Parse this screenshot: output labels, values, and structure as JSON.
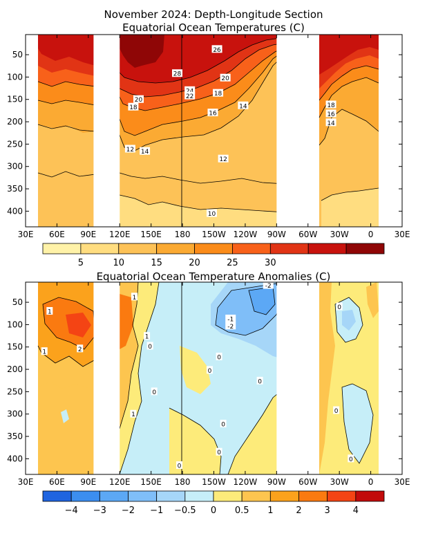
{
  "chart_data": [
    {
      "type": "heatmap",
      "title": "November 2024: Depth-Longitude Section",
      "subtitle": "Equatorial Ocean Temperatures (C)",
      "xlim": [
        30,
        390
      ],
      "ylim": [
        435,
        5
      ],
      "x_ticks": [
        {
          "v": 30,
          "label": "30E"
        },
        {
          "v": 60,
          "label": "60E"
        },
        {
          "v": 90,
          "label": "90E"
        },
        {
          "v": 120,
          "label": "120E"
        },
        {
          "v": 150,
          "label": "150E"
        },
        {
          "v": 180,
          "label": "180"
        },
        {
          "v": 210,
          "label": "150W"
        },
        {
          "v": 240,
          "label": "120W"
        },
        {
          "v": 270,
          "label": "90W"
        },
        {
          "v": 300,
          "label": "60W"
        },
        {
          "v": 330,
          "label": "30W"
        },
        {
          "v": 360,
          "label": "0"
        },
        {
          "v": 390,
          "label": "30E"
        }
      ],
      "y_ticks": [
        {
          "v": 50,
          "label": "50"
        },
        {
          "v": 100,
          "label": "100"
        },
        {
          "v": 150,
          "label": "150"
        },
        {
          "v": 200,
          "label": "200"
        },
        {
          "v": 250,
          "label": "250"
        },
        {
          "v": 300,
          "label": "300"
        },
        {
          "v": 350,
          "label": "350"
        },
        {
          "v": 400,
          "label": "400"
        }
      ],
      "data_gaps_lon": [
        [
          95,
          120
        ],
        [
          270,
          300
        ],
        [
          378,
          390
        ]
      ],
      "vertical_line_lon": 180,
      "colorbar": {
        "colors": [
          "#fff2a8",
          "#ffdd80",
          "#fdc257",
          "#fbaa33",
          "#fb8c1a",
          "#f8611a",
          "#e13415",
          "#c8120d",
          "#8f0606"
        ],
        "labels": [
          "5",
          "10",
          "15",
          "20",
          "25",
          "30"
        ]
      },
      "contour_labels": [
        {
          "text": "26",
          "lon": 213,
          "d": 38
        },
        {
          "text": "28",
          "lon": 175,
          "d": 92
        },
        {
          "text": "20",
          "lon": 221,
          "d": 102
        },
        {
          "text": "24",
          "lon": 187,
          "d": 130
        },
        {
          "text": "22",
          "lon": 187,
          "d": 142
        },
        {
          "text": "18",
          "lon": 214,
          "d": 136
        },
        {
          "text": "20",
          "lon": 138,
          "d": 150
        },
        {
          "text": "18",
          "lon": 133,
          "d": 167
        },
        {
          "text": "14",
          "lon": 238,
          "d": 164
        },
        {
          "text": "16",
          "lon": 209,
          "d": 180
        },
        {
          "text": "12",
          "lon": 130,
          "d": 261
        },
        {
          "text": "14",
          "lon": 144,
          "d": 266
        },
        {
          "text": "12",
          "lon": 219,
          "d": 283
        },
        {
          "text": "10",
          "lon": 208,
          "d": 405
        },
        {
          "text": "18",
          "lon": 322,
          "d": 162
        },
        {
          "text": "16",
          "lon": 322,
          "d": 182
        },
        {
          "text": "14",
          "lon": 322,
          "d": 202
        }
      ]
    },
    {
      "type": "heatmap",
      "title": "Equatorial Ocean Temperature Anomalies (C)",
      "xlim": [
        30,
        390
      ],
      "ylim": [
        435,
        5
      ],
      "x_ticks": [
        {
          "v": 30,
          "label": "30E"
        },
        {
          "v": 60,
          "label": "60E"
        },
        {
          "v": 90,
          "label": "90E"
        },
        {
          "v": 120,
          "label": "120E"
        },
        {
          "v": 150,
          "label": "150E"
        },
        {
          "v": 180,
          "label": "180"
        },
        {
          "v": 210,
          "label": "150W"
        },
        {
          "v": 240,
          "label": "120W"
        },
        {
          "v": 270,
          "label": "90W"
        },
        {
          "v": 300,
          "label": "60W"
        },
        {
          "v": 330,
          "label": "30W"
        },
        {
          "v": 360,
          "label": "0"
        },
        {
          "v": 390,
          "label": "30E"
        }
      ],
      "y_ticks": [
        {
          "v": 50,
          "label": "50"
        },
        {
          "v": 100,
          "label": "100"
        },
        {
          "v": 150,
          "label": "150"
        },
        {
          "v": 200,
          "label": "200"
        },
        {
          "v": 250,
          "label": "250"
        },
        {
          "v": 300,
          "label": "300"
        },
        {
          "v": 350,
          "label": "350"
        },
        {
          "v": 400,
          "label": "400"
        }
      ],
      "data_gaps_lon": [
        [
          95,
          120
        ],
        [
          270,
          300
        ],
        [
          378,
          390
        ]
      ],
      "vertical_line_lon": 180,
      "colorbar": {
        "colors": [
          "#1f64e0",
          "#3c8ef0",
          "#5ca8f5",
          "#7fbef8",
          "#a6d6f8",
          "#c6eef8",
          "#fdeb7a",
          "#fdc54f",
          "#fba21c",
          "#fa7a10",
          "#f44414",
          "#c20b0b"
        ],
        "labels": [
          "−4",
          "−3",
          "−2",
          "−1",
          "−0.5",
          "0",
          "0.5",
          "1",
          "2",
          "3",
          "4"
        ]
      },
      "contour_labels": [
        {
          "text": "1",
          "lon": 53,
          "d": 70
        },
        {
          "text": "1",
          "lon": 134,
          "d": 38
        },
        {
          "text": "1",
          "lon": 146,
          "d": 126
        },
        {
          "text": "0",
          "lon": 149,
          "d": 148
        },
        {
          "text": "2",
          "lon": 82,
          "d": 154
        },
        {
          "text": "1",
          "lon": 48,
          "d": 160
        },
        {
          "text": "-1",
          "lon": 226,
          "d": 87
        },
        {
          "text": "-2",
          "lon": 226,
          "d": 103
        },
        {
          "text": "-2",
          "lon": 262,
          "d": 12
        },
        {
          "text": "0",
          "lon": 330,
          "d": 60
        },
        {
          "text": "0",
          "lon": 215,
          "d": 172
        },
        {
          "text": "0",
          "lon": 206,
          "d": 202
        },
        {
          "text": "0",
          "lon": 254,
          "d": 226
        },
        {
          "text": "0",
          "lon": 153,
          "d": 250
        },
        {
          "text": "1",
          "lon": 133,
          "d": 300
        },
        {
          "text": "0",
          "lon": 327,
          "d": 292
        },
        {
          "text": "0",
          "lon": 219,
          "d": 322
        },
        {
          "text": "0",
          "lon": 215,
          "d": 385
        },
        {
          "text": "0",
          "lon": 177,
          "d": 415
        },
        {
          "text": "0",
          "lon": 341,
          "d": 400
        }
      ]
    }
  ]
}
